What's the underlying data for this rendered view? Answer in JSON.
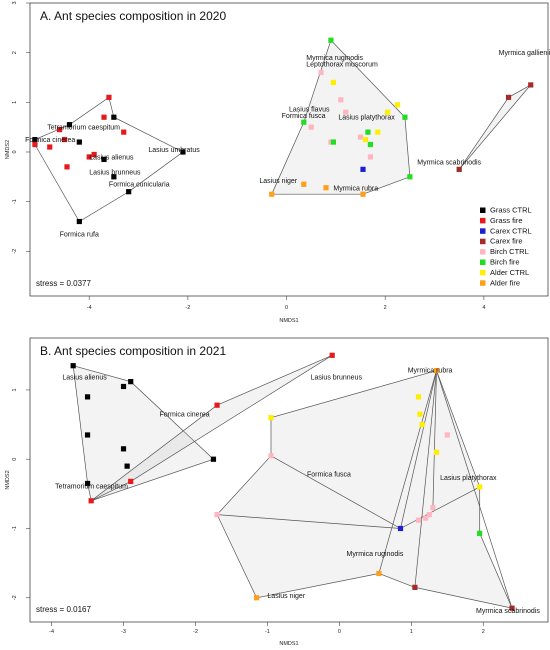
{
  "chart_data": [
    {
      "type": "scatter",
      "title": "A. Ant species composition in 2020",
      "xlabel": "NMDS1",
      "ylabel": "NMDS2",
      "xlim": [
        -5.2,
        5.3
      ],
      "ylim": [
        -2.9,
        3.0
      ],
      "xticks": [
        -4,
        -2,
        0,
        2,
        4
      ],
      "yticks": [
        -2,
        -1,
        0,
        1,
        2,
        3
      ],
      "stress": "stress = 0.0377",
      "legend": {
        "position": "bottom-right",
        "entries": [
          {
            "label": "Grass CTRL",
            "color": "#000000"
          },
          {
            "label": "Grass fire",
            "color": "#e41a1c"
          },
          {
            "label": "Carex CTRL",
            "color": "#1f1fd2"
          },
          {
            "label": "Carex fire",
            "color": "#a52a2a"
          },
          {
            "label": "Birch CTRL",
            "color": "#ffb6c1"
          },
          {
            "label": "Birch fire",
            "color": "#22dd22"
          },
          {
            "label": "Alder CTRL",
            "color": "#ffee00"
          },
          {
            "label": "Alder fire",
            "color": "#ff9f1a"
          }
        ]
      },
      "series": [
        {
          "group": "Grass CTRL",
          "color": "#000000",
          "points": [
            [
              -5.1,
              0.25
            ],
            [
              -4.4,
              0.55
            ],
            [
              -4.2,
              0.2
            ],
            [
              -3.5,
              0.7
            ],
            [
              -3.7,
              -0.15
            ],
            [
              -3.5,
              -0.5
            ],
            [
              -3.2,
              -0.8
            ],
            [
              -2.1,
              0
            ],
            [
              -4.2,
              -1.4
            ]
          ]
        },
        {
          "group": "Grass fire",
          "color": "#e41a1c",
          "points": [
            [
              -5.1,
              0.15
            ],
            [
              -4.8,
              0.1
            ],
            [
              -4.6,
              0.45
            ],
            [
              -4.5,
              0.25
            ],
            [
              -3.6,
              1.1
            ],
            [
              -3.7,
              0.7
            ],
            [
              -3.3,
              0.4
            ],
            [
              -3.9,
              -0.05
            ],
            [
              -4.0,
              -0.1
            ],
            [
              -4.45,
              -0.3
            ]
          ]
        },
        {
          "group": "Carex CTRL",
          "color": "#1f1fd2",
          "points": [
            [
              1.55,
              -0.35
            ]
          ]
        },
        {
          "group": "Carex fire",
          "color": "#a52a2a",
          "points": [
            [
              3.5,
              -0.35
            ],
            [
              4.5,
              1.1
            ],
            [
              4.95,
              1.35
            ]
          ]
        },
        {
          "group": "Birch CTRL",
          "color": "#ffb6c1",
          "points": [
            [
              0.5,
              0.5
            ],
            [
              1.1,
              1.05
            ],
            [
              1.2,
              0.8
            ],
            [
              0.9,
              0.2
            ],
            [
              0.7,
              1.6
            ],
            [
              1.5,
              0.3
            ],
            [
              1.7,
              -0.1
            ]
          ]
        },
        {
          "group": "Birch fire",
          "color": "#22dd22",
          "points": [
            [
              0.9,
              2.25
            ],
            [
              0.35,
              0.6
            ],
            [
              0.95,
              0.2
            ],
            [
              1.7,
              0.15
            ],
            [
              2.4,
              0.7
            ],
            [
              2.5,
              -0.5
            ],
            [
              1.65,
              0.4
            ]
          ]
        },
        {
          "group": "Alder CTRL",
          "color": "#ffee00",
          "points": [
            [
              0.95,
              1.4
            ],
            [
              2.05,
              0.8
            ],
            [
              2.25,
              0.95
            ],
            [
              1.85,
              0.4
            ],
            [
              1.6,
              0.25
            ]
          ]
        },
        {
          "group": "Alder fire",
          "color": "#ff9f1a",
          "points": [
            [
              -0.3,
              -0.85
            ],
            [
              0.35,
              -0.65
            ],
            [
              0.8,
              -0.72
            ],
            [
              1.55,
              -0.85
            ]
          ]
        }
      ],
      "species_labels": [
        {
          "text": "Myrmica ruginodis",
          "x": 0.4,
          "y": 1.85
        },
        {
          "text": "Myrmica gallienii",
          "x": 4.3,
          "y": 1.95
        },
        {
          "text": "Leptothorax muscorum",
          "x": 0.4,
          "y": 1.72
        },
        {
          "text": "Lasius flavus",
          "x": 0.05,
          "y": 0.82
        },
        {
          "text": "Formica fusca",
          "x": -0.1,
          "y": 0.68
        },
        {
          "text": "Lasius platythorax",
          "x": 1.05,
          "y": 0.65
        },
        {
          "text": "Myrmica scabrinodis",
          "x": 2.65,
          "y": -0.25
        },
        {
          "text": "Lasius niger",
          "x": -0.55,
          "y": -0.62
        },
        {
          "text": "Myrmica rubra",
          "x": 0.95,
          "y": -0.78
        },
        {
          "text": "Tetramorium caespitum",
          "x": -4.85,
          "y": 0.45
        },
        {
          "text": "Formica cinerea",
          "x": -5.3,
          "y": 0.2
        },
        {
          "text": "Lasius alienus",
          "x": -4.0,
          "y": -0.15
        },
        {
          "text": "Lasius brunneus",
          "x": -4.0,
          "y": -0.45
        },
        {
          "text": "Formica cunicularia",
          "x": -3.6,
          "y": -0.7
        },
        {
          "text": "Lasius umbratus",
          "x": -2.8,
          "y": 0
        },
        {
          "text": "Formica rufa",
          "x": -4.6,
          "y": -1.7
        }
      ],
      "hulls": [
        [
          [
            -5.1,
            0.25
          ],
          [
            -4.4,
            0.55
          ],
          [
            -3.6,
            1.1
          ],
          [
            -3.5,
            0.7
          ],
          [
            -2.1,
            0
          ],
          [
            -3.2,
            -0.8
          ],
          [
            -4.2,
            -1.4
          ],
          [
            -5.1,
            0.15
          ]
        ],
        [
          [
            0.9,
            2.25
          ],
          [
            2.4,
            0.7
          ],
          [
            2.5,
            -0.5
          ],
          [
            1.55,
            -0.85
          ],
          [
            -0.3,
            -0.85
          ],
          [
            0.35,
            0.6
          ],
          [
            0.9,
            2.25
          ]
        ],
        [
          [
            3.5,
            -0.35
          ],
          [
            4.95,
            1.35
          ],
          [
            4.5,
            1.1
          ],
          [
            3.5,
            -0.35
          ]
        ]
      ]
    },
    {
      "type": "scatter",
      "title": "B. Ant species composition in 2021",
      "xlabel": "NMDS1",
      "ylabel": "NMDS2",
      "xlim": [
        -4.3,
        2.9
      ],
      "ylim": [
        -2.35,
        1.75
      ],
      "xticks": [
        -4,
        -3,
        -2,
        -1,
        0,
        1,
        2
      ],
      "yticks": [
        -2,
        -1,
        0,
        1
      ],
      "stress": "stress = 0.0167",
      "series": [
        {
          "group": "Grass CTRL",
          "color": "#000000",
          "points": [
            [
              -3.7,
              1.35
            ],
            [
              -3.0,
              1.05
            ],
            [
              -2.9,
              1.12
            ],
            [
              -3.5,
              0.9
            ],
            [
              -3.5,
              0.35
            ],
            [
              -3.0,
              0.15
            ],
            [
              -2.95,
              -0.1
            ],
            [
              -1.75,
              0
            ],
            [
              -3.5,
              -0.35
            ]
          ]
        },
        {
          "group": "Grass fire",
          "color": "#e41a1c",
          "points": [
            [
              -0.1,
              1.5
            ],
            [
              -1.7,
              0.78
            ],
            [
              -2.9,
              -0.32
            ],
            [
              -3.45,
              -0.6
            ]
          ]
        },
        {
          "group": "Carex CTRL",
          "color": "#1f1fd2",
          "points": [
            [
              0.85,
              -1.0
            ]
          ]
        },
        {
          "group": "Carex fire",
          "color": "#a52a2a",
          "points": [
            [
              1.05,
              -1.85
            ],
            [
              2.4,
              -2.15
            ]
          ]
        },
        {
          "group": "Birch CTRL",
          "color": "#ffb6c1",
          "points": [
            [
              -0.95,
              0.05
            ],
            [
              -1.7,
              -0.8
            ],
            [
              1.2,
              -0.85
            ],
            [
              1.25,
              -0.8
            ],
            [
              1.5,
              0.35
            ],
            [
              1.3,
              -0.7
            ],
            [
              1.1,
              -0.88
            ]
          ]
        },
        {
          "group": "Birch fire",
          "color": "#22dd22",
          "points": [
            [
              1.95,
              -1.07
            ]
          ]
        },
        {
          "group": "Alder CTRL",
          "color": "#ffee00",
          "points": [
            [
              -0.95,
              0.6
            ],
            [
              1.1,
              0.9
            ],
            [
              1.12,
              0.65
            ],
            [
              1.15,
              0.5
            ],
            [
              1.35,
              0.1
            ],
            [
              1.95,
              -0.4
            ]
          ]
        },
        {
          "group": "Alder fire",
          "color": "#ff9f1a",
          "points": [
            [
              1.35,
              1.28
            ],
            [
              0.55,
              -1.65
            ],
            [
              -1.15,
              -2.0
            ]
          ]
        }
      ],
      "species_labels": [
        {
          "text": "Lasius alienus",
          "x": -3.85,
          "y": 1.15
        },
        {
          "text": "Lasius brunneus",
          "x": -0.4,
          "y": 1.15
        },
        {
          "text": "Formica cinerea",
          "x": -2.5,
          "y": 0.62
        },
        {
          "text": "Tetramorium caespitum",
          "x": -3.95,
          "y": -0.42
        },
        {
          "text": "Myrmica rubra",
          "x": 0.95,
          "y": 1.25
        },
        {
          "text": "Formica fusca",
          "x": -0.45,
          "y": -0.25
        },
        {
          "text": "Lasius platythorax",
          "x": 1.4,
          "y": -0.3
        },
        {
          "text": "Myrmica ruginodis",
          "x": 0.1,
          "y": -1.4
        },
        {
          "text": "Lasius niger",
          "x": -1.0,
          "y": -2.0
        },
        {
          "text": "Myrmica scabrinodis",
          "x": 1.9,
          "y": -2.22
        }
      ],
      "hulls": [
        [
          [
            -3.7,
            1.35
          ],
          [
            -2.9,
            1.12
          ],
          [
            -1.75,
            0
          ],
          [
            -3.45,
            -0.6
          ],
          [
            -3.5,
            -0.35
          ],
          [
            -3.7,
            1.35
          ]
        ],
        [
          [
            -3.45,
            -0.6
          ],
          [
            -1.7,
            0.78
          ],
          [
            -0.1,
            1.5
          ],
          [
            -2.9,
            -0.32
          ],
          [
            -3.45,
            -0.6
          ]
        ],
        [
          [
            1.35,
            1.28
          ],
          [
            1.95,
            -0.4
          ],
          [
            1.95,
            -1.07
          ],
          [
            2.4,
            -2.15
          ],
          [
            1.05,
            -1.85
          ],
          [
            0.55,
            -1.65
          ],
          [
            -1.15,
            -2.0
          ],
          [
            -1.7,
            -0.8
          ],
          [
            -0.95,
            0.05
          ],
          [
            -0.95,
            0.6
          ],
          [
            1.35,
            1.28
          ]
        ],
        [
          [
            1.35,
            1.28
          ],
          [
            0.85,
            -1.0
          ],
          [
            -1.7,
            -0.8
          ]
        ],
        [
          [
            1.35,
            1.28
          ],
          [
            1.05,
            -1.85
          ]
        ],
        [
          [
            1.35,
            1.28
          ],
          [
            2.4,
            -2.15
          ]
        ],
        [
          [
            1.35,
            1.28
          ],
          [
            1.3,
            -0.7
          ]
        ],
        [
          [
            1.35,
            1.28
          ],
          [
            0.55,
            -1.65
          ]
        ],
        [
          [
            0.85,
            -1.0
          ],
          [
            1.95,
            -0.4
          ]
        ],
        [
          [
            -0.95,
            0.05
          ],
          [
            0.85,
            -1.0
          ]
        ]
      ]
    }
  ]
}
